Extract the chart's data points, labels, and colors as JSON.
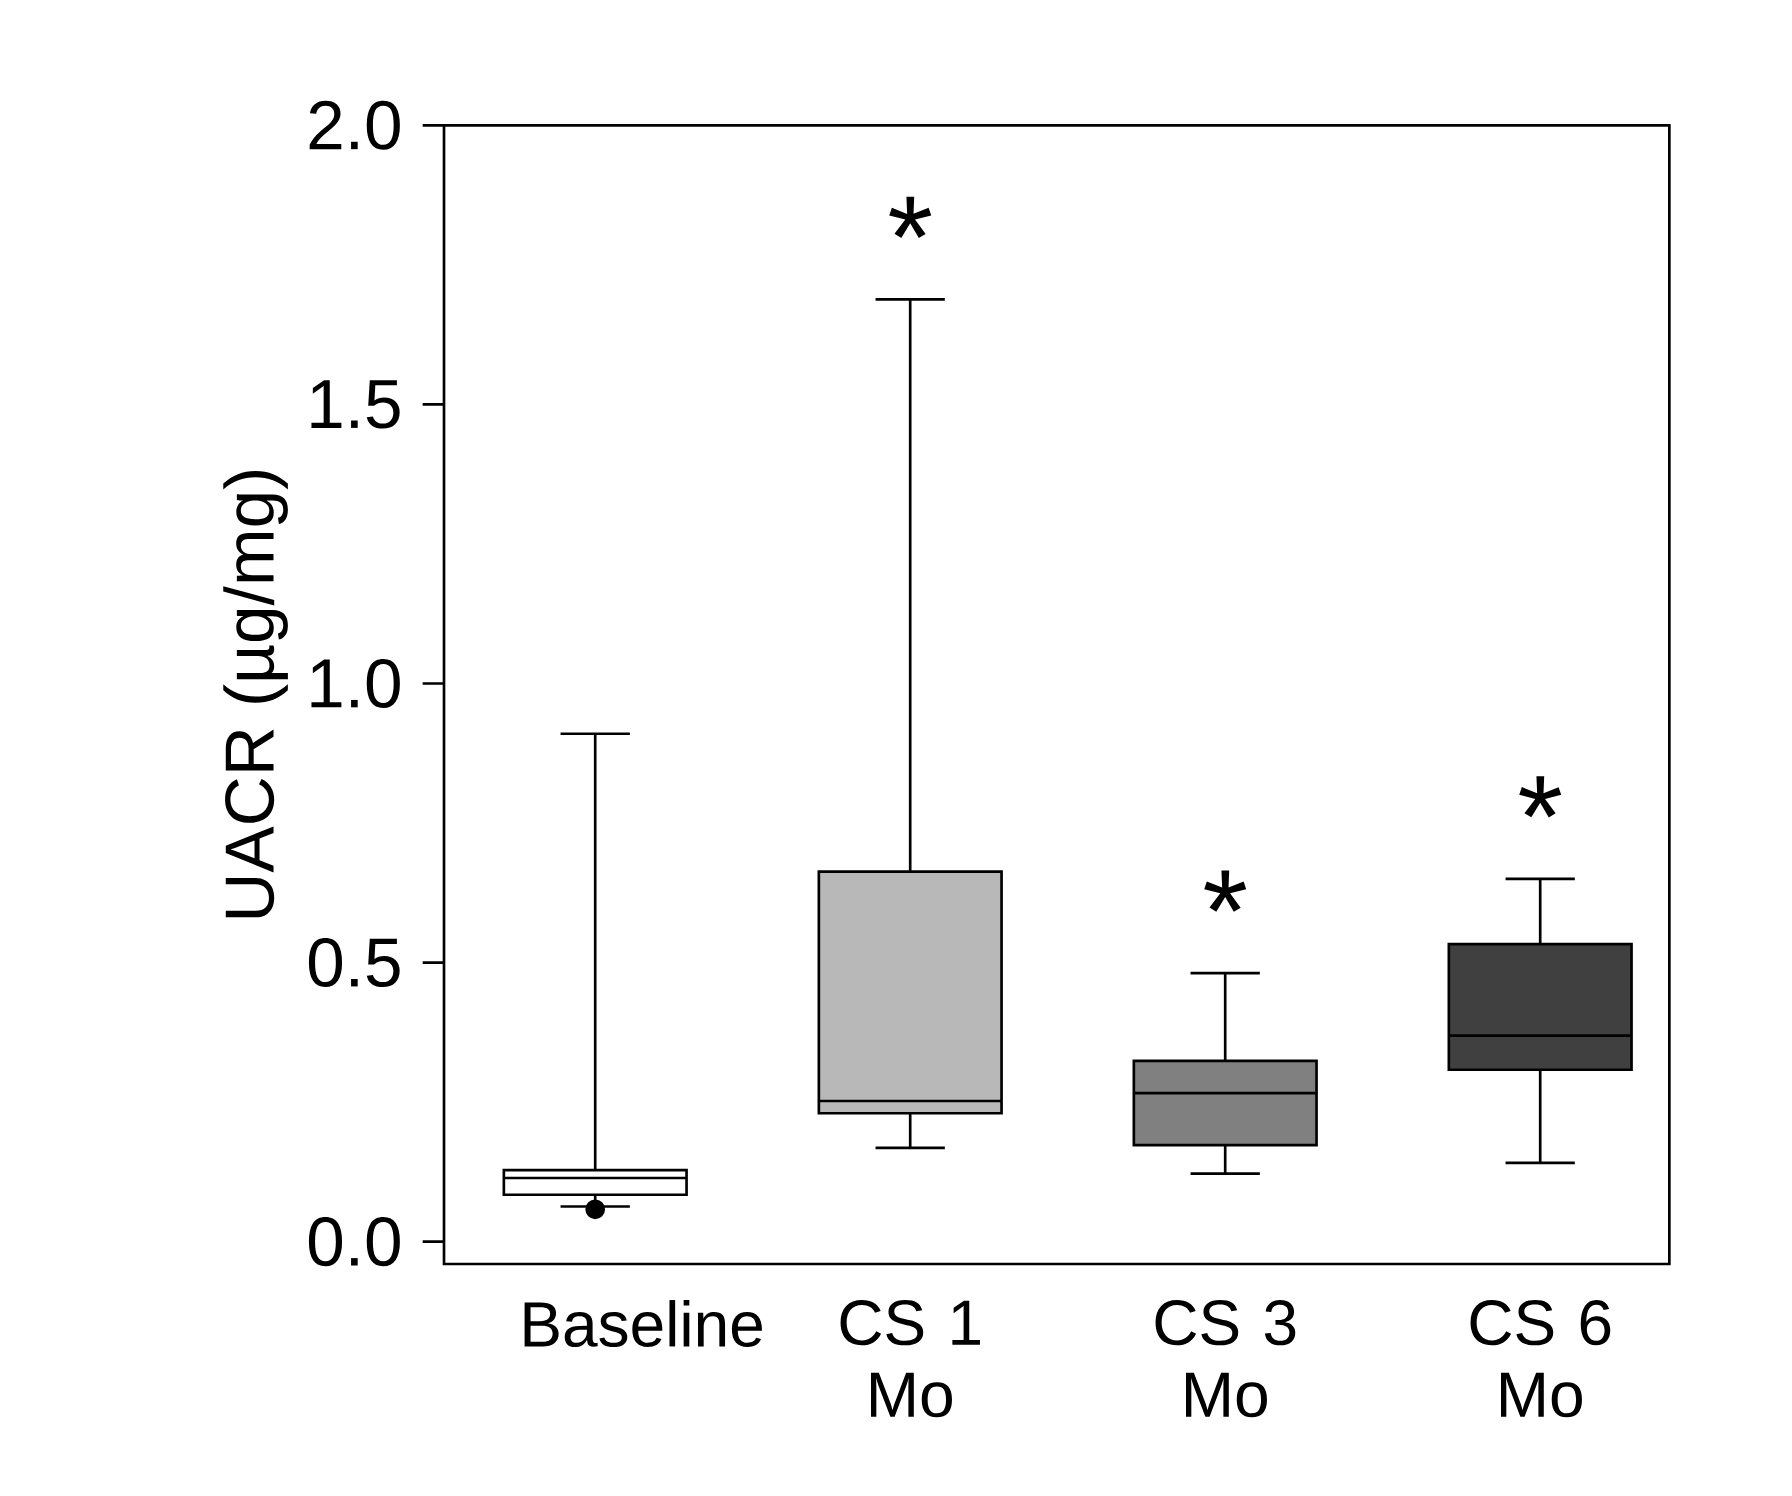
{
  "chart_data": {
    "type": "box",
    "ylabel": "UACR (µg/mg)",
    "categories": [
      "Baseline",
      "CS 1 Mo",
      "CS 3 Mo",
      "CS 6 Mo"
    ],
    "colors": [
      "#ffffff",
      "#b8b8b8",
      "#808080",
      "#404040"
    ],
    "boxes": [
      {
        "low": 0.063,
        "q1": 0.084,
        "median": 0.114,
        "q3": 0.128,
        "high": 0.91,
        "outliers": [
          0.058
        ]
      },
      {
        "low": 0.168,
        "q1": 0.23,
        "median": 0.252,
        "q3": 0.663,
        "high": 1.688
      },
      {
        "low": 0.122,
        "q1": 0.173,
        "median": 0.266,
        "q3": 0.324,
        "high": 0.481
      },
      {
        "low": 0.141,
        "q1": 0.308,
        "median": 0.369,
        "q3": 0.533,
        "high": 0.65
      }
    ],
    "ylim": [
      -0.04,
      2.0
    ],
    "yticks": [
      {
        "value": 0,
        "label": "0.0"
      },
      0.5,
      {
        "value": 1.0,
        "label": "1.0"
      },
      1.5,
      {
        "value": 2.0,
        "label": "2.0"
      }
    ],
    "annotations": [
      "*",
      "*",
      "*"
    ]
  }
}
